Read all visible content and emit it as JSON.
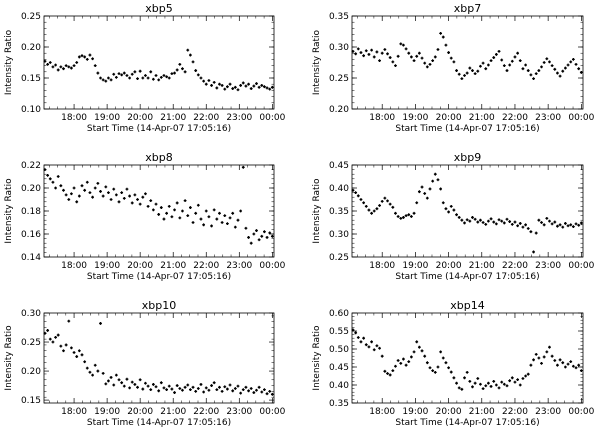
{
  "chart_data": [
    {
      "type": "scatter",
      "title": "xbp5",
      "xlabel": "Start Time (14-Apr-07 17:05:16)",
      "ylabel": "Intensity Ratio",
      "xlim": [
        17.09,
        24.05
      ],
      "ylim": [
        0.1,
        0.25
      ],
      "x_ticks": [
        "18:00",
        "19:00",
        "20:00",
        "21:00",
        "22:00",
        "23:00",
        "00:00"
      ],
      "y_ticks": [
        "0.10",
        "0.15",
        "0.20",
        "0.25"
      ],
      "x": [
        17.12,
        17.2,
        17.28,
        17.36,
        17.44,
        17.52,
        17.6,
        17.68,
        17.76,
        17.84,
        17.92,
        18.0,
        18.08,
        18.16,
        18.24,
        18.32,
        18.4,
        18.48,
        18.56,
        18.64,
        18.72,
        18.8,
        18.88,
        18.96,
        19.04,
        19.12,
        19.2,
        19.28,
        19.36,
        19.44,
        19.52,
        19.6,
        19.68,
        19.76,
        19.84,
        19.92,
        20.0,
        20.08,
        20.16,
        20.24,
        20.32,
        20.4,
        20.48,
        20.56,
        20.64,
        20.72,
        20.8,
        20.88,
        20.96,
        21.04,
        21.12,
        21.2,
        21.28,
        21.36,
        21.44,
        21.52,
        21.6,
        21.68,
        21.76,
        21.84,
        21.92,
        22.0,
        22.08,
        22.16,
        22.24,
        22.32,
        22.4,
        22.48,
        22.56,
        22.64,
        22.72,
        22.8,
        22.88,
        22.96,
        23.04,
        23.12,
        23.2,
        23.28,
        23.36,
        23.44,
        23.52,
        23.6,
        23.68,
        23.76,
        23.84,
        23.92,
        24.0
      ],
      "y": [
        0.177,
        0.172,
        0.175,
        0.168,
        0.171,
        0.163,
        0.168,
        0.165,
        0.17,
        0.168,
        0.166,
        0.17,
        0.175,
        0.184,
        0.186,
        0.184,
        0.18,
        0.187,
        0.181,
        0.17,
        0.158,
        0.15,
        0.147,
        0.145,
        0.15,
        0.147,
        0.156,
        0.151,
        0.157,
        0.155,
        0.158,
        0.154,
        0.15,
        0.156,
        0.16,
        0.149,
        0.161,
        0.15,
        0.154,
        0.15,
        0.16,
        0.148,
        0.154,
        0.147,
        0.151,
        0.154,
        0.152,
        0.15,
        0.157,
        0.158,
        0.163,
        0.172,
        0.165,
        0.16,
        0.195,
        0.187,
        0.176,
        0.162,
        0.155,
        0.15,
        0.145,
        0.14,
        0.146,
        0.138,
        0.143,
        0.134,
        0.14,
        0.138,
        0.132,
        0.136,
        0.14,
        0.133,
        0.135,
        0.131,
        0.138,
        0.142,
        0.137,
        0.14,
        0.133,
        0.137,
        0.141,
        0.135,
        0.138,
        0.136,
        0.134,
        0.132,
        0.135
      ]
    },
    {
      "type": "scatter",
      "title": "xbp7",
      "xlabel": "Start Time (14-Apr-07 17:05:16)",
      "ylabel": "Intensity Ratio",
      "xlim": [
        17.09,
        24.05
      ],
      "ylim": [
        0.2,
        0.35
      ],
      "x_ticks": [
        "18:00",
        "19:00",
        "20:00",
        "21:00",
        "22:00",
        "23:00",
        "00:00"
      ],
      "y_ticks": [
        "0.20",
        "0.25",
        "0.30",
        "0.35"
      ],
      "x": [
        17.12,
        17.2,
        17.28,
        17.36,
        17.44,
        17.52,
        17.6,
        17.68,
        17.76,
        17.84,
        17.92,
        18.0,
        18.08,
        18.16,
        18.24,
        18.32,
        18.4,
        18.48,
        18.56,
        18.64,
        18.72,
        18.8,
        18.88,
        18.96,
        19.04,
        19.12,
        19.2,
        19.28,
        19.36,
        19.44,
        19.52,
        19.6,
        19.68,
        19.76,
        19.84,
        19.92,
        20.0,
        20.08,
        20.16,
        20.24,
        20.32,
        20.4,
        20.48,
        20.56,
        20.64,
        20.72,
        20.8,
        20.88,
        20.96,
        21.04,
        21.12,
        21.2,
        21.28,
        21.36,
        21.44,
        21.52,
        21.6,
        21.68,
        21.76,
        21.84,
        21.92,
        22.0,
        22.08,
        22.16,
        22.24,
        22.32,
        22.4,
        22.48,
        22.56,
        22.64,
        22.72,
        22.8,
        22.88,
        22.96,
        23.04,
        23.12,
        23.2,
        23.28,
        23.36,
        23.44,
        23.52,
        23.6,
        23.68,
        23.76,
        23.84,
        23.92,
        24.0
      ],
      "y": [
        0.293,
        0.289,
        0.297,
        0.291,
        0.286,
        0.294,
        0.288,
        0.295,
        0.284,
        0.292,
        0.278,
        0.29,
        0.296,
        0.289,
        0.283,
        0.276,
        0.27,
        0.285,
        0.305,
        0.303,
        0.297,
        0.29,
        0.284,
        0.278,
        0.285,
        0.29,
        0.282,
        0.274,
        0.268,
        0.272,
        0.278,
        0.284,
        0.296,
        0.322,
        0.316,
        0.303,
        0.291,
        0.282,
        0.276,
        0.262,
        0.256,
        0.249,
        0.254,
        0.258,
        0.266,
        0.262,
        0.257,
        0.261,
        0.269,
        0.274,
        0.265,
        0.271,
        0.278,
        0.283,
        0.288,
        0.293,
        0.279,
        0.27,
        0.262,
        0.271,
        0.277,
        0.284,
        0.29,
        0.278,
        0.265,
        0.271,
        0.262,
        0.255,
        0.249,
        0.257,
        0.262,
        0.268,
        0.275,
        0.281,
        0.276,
        0.27,
        0.264,
        0.258,
        0.253,
        0.261,
        0.266,
        0.271,
        0.276,
        0.28,
        0.272,
        0.265,
        0.259
      ]
    },
    {
      "type": "scatter",
      "title": "xbp8",
      "xlabel": "Start Time (14-Apr-07 17:05:16)",
      "ylabel": "Intensity Ratio",
      "xlim": [
        17.09,
        24.05
      ],
      "ylim": [
        0.14,
        0.22
      ],
      "x_ticks": [
        "18:00",
        "19:00",
        "20:00",
        "21:00",
        "22:00",
        "23:00",
        "00:00"
      ],
      "y_ticks": [
        "0.14",
        "0.16",
        "0.18",
        "0.20",
        "0.22"
      ],
      "x": [
        17.12,
        17.2,
        17.28,
        17.36,
        17.44,
        17.52,
        17.6,
        17.68,
        17.76,
        17.84,
        17.92,
        18.0,
        18.08,
        18.16,
        18.24,
        18.32,
        18.4,
        18.48,
        18.56,
        18.64,
        18.72,
        18.8,
        18.88,
        18.96,
        19.04,
        19.12,
        19.2,
        19.28,
        19.36,
        19.44,
        19.52,
        19.6,
        19.68,
        19.76,
        19.84,
        19.92,
        20.0,
        20.08,
        20.16,
        20.24,
        20.32,
        20.4,
        20.48,
        20.56,
        20.64,
        20.72,
        20.8,
        20.88,
        20.96,
        21.04,
        21.12,
        21.2,
        21.28,
        21.36,
        21.44,
        21.52,
        21.6,
        21.68,
        21.76,
        21.84,
        21.92,
        22.0,
        22.08,
        22.16,
        22.24,
        22.32,
        22.4,
        22.48,
        22.56,
        22.64,
        22.72,
        22.8,
        22.88,
        22.96,
        23.04,
        23.12,
        23.2,
        23.28,
        23.36,
        23.44,
        23.52,
        23.6,
        23.68,
        23.76,
        23.84,
        23.92,
        24.0
      ],
      "y": [
        0.216,
        0.211,
        0.208,
        0.205,
        0.2,
        0.21,
        0.202,
        0.198,
        0.194,
        0.19,
        0.195,
        0.2,
        0.188,
        0.193,
        0.202,
        0.198,
        0.205,
        0.196,
        0.192,
        0.2,
        0.204,
        0.197,
        0.193,
        0.201,
        0.196,
        0.19,
        0.199,
        0.194,
        0.188,
        0.196,
        0.191,
        0.199,
        0.193,
        0.187,
        0.194,
        0.19,
        0.186,
        0.192,
        0.195,
        0.184,
        0.189,
        0.181,
        0.186,
        0.177,
        0.183,
        0.173,
        0.178,
        0.184,
        0.175,
        0.181,
        0.187,
        0.174,
        0.18,
        0.189,
        0.176,
        0.183,
        0.17,
        0.178,
        0.185,
        0.173,
        0.168,
        0.18,
        0.175,
        0.167,
        0.181,
        0.173,
        0.178,
        0.17,
        0.176,
        0.169,
        0.174,
        0.178,
        0.166,
        0.172,
        0.18,
        0.218,
        0.165,
        0.157,
        0.152,
        0.16,
        0.163,
        0.155,
        0.158,
        0.162,
        0.157,
        0.161,
        0.158
      ]
    },
    {
      "type": "scatter",
      "title": "xbp9",
      "xlabel": "Start Time (14-Apr-07 17:05:16)",
      "ylabel": "Intensity Ratio",
      "xlim": [
        17.09,
        24.05
      ],
      "ylim": [
        0.25,
        0.45
      ],
      "x_ticks": [
        "18:00",
        "19:00",
        "20:00",
        "21:00",
        "22:00",
        "23:00",
        "00:00"
      ],
      "y_ticks": [
        "0.25",
        "0.30",
        "0.35",
        "0.40",
        "0.45"
      ],
      "x": [
        17.12,
        17.2,
        17.28,
        17.36,
        17.44,
        17.52,
        17.6,
        17.68,
        17.76,
        17.84,
        17.92,
        18.0,
        18.08,
        18.16,
        18.24,
        18.32,
        18.4,
        18.48,
        18.56,
        18.64,
        18.72,
        18.8,
        18.88,
        18.96,
        19.04,
        19.12,
        19.2,
        19.28,
        19.36,
        19.44,
        19.52,
        19.6,
        19.68,
        19.76,
        19.84,
        19.92,
        20.0,
        20.08,
        20.16,
        20.24,
        20.32,
        20.4,
        20.48,
        20.56,
        20.64,
        20.72,
        20.8,
        20.88,
        20.96,
        21.04,
        21.12,
        21.2,
        21.28,
        21.36,
        21.44,
        21.52,
        21.6,
        21.68,
        21.76,
        21.84,
        21.92,
        22.0,
        22.08,
        22.16,
        22.24,
        22.32,
        22.4,
        22.48,
        22.56,
        22.64,
        22.72,
        22.8,
        22.88,
        22.96,
        23.04,
        23.12,
        23.2,
        23.28,
        23.36,
        23.44,
        23.52,
        23.6,
        23.68,
        23.76,
        23.84,
        23.92,
        24.0
      ],
      "y": [
        0.395,
        0.39,
        0.383,
        0.375,
        0.368,
        0.36,
        0.352,
        0.345,
        0.35,
        0.355,
        0.362,
        0.371,
        0.378,
        0.372,
        0.365,
        0.358,
        0.345,
        0.338,
        0.334,
        0.336,
        0.34,
        0.342,
        0.338,
        0.345,
        0.368,
        0.392,
        0.402,
        0.388,
        0.378,
        0.398,
        0.415,
        0.43,
        0.418,
        0.398,
        0.368,
        0.355,
        0.348,
        0.36,
        0.352,
        0.342,
        0.336,
        0.33,
        0.324,
        0.331,
        0.328,
        0.336,
        0.332,
        0.326,
        0.33,
        0.325,
        0.321,
        0.328,
        0.333,
        0.326,
        0.322,
        0.331,
        0.328,
        0.324,
        0.332,
        0.327,
        0.321,
        0.326,
        0.318,
        0.323,
        0.315,
        0.32,
        0.312,
        0.305,
        0.261,
        0.302,
        0.33,
        0.325,
        0.32,
        0.334,
        0.328,
        0.322,
        0.326,
        0.317,
        0.32,
        0.315,
        0.323,
        0.318,
        0.32,
        0.316,
        0.322,
        0.319,
        0.324
      ]
    },
    {
      "type": "scatter",
      "title": "xbp10",
      "xlabel": "Start Time (14-Apr-07 17:05:16)",
      "ylabel": "Intensity Ratio",
      "xlim": [
        17.09,
        24.05
      ],
      "ylim": [
        0.145,
        0.3
      ],
      "x_ticks": [
        "18:00",
        "19:00",
        "20:00",
        "21:00",
        "22:00",
        "23:00",
        "00:00"
      ],
      "y_ticks": [
        "0.15",
        "0.20",
        "0.25",
        "0.30"
      ],
      "x": [
        17.12,
        17.2,
        17.28,
        17.36,
        17.44,
        17.52,
        17.6,
        17.68,
        17.76,
        17.84,
        17.92,
        18.0,
        18.08,
        18.16,
        18.24,
        18.32,
        18.4,
        18.48,
        18.56,
        18.64,
        18.72,
        18.8,
        18.88,
        18.96,
        19.04,
        19.12,
        19.2,
        19.28,
        19.36,
        19.44,
        19.52,
        19.6,
        19.68,
        19.76,
        19.84,
        19.92,
        20.0,
        20.08,
        20.16,
        20.24,
        20.32,
        20.4,
        20.48,
        20.56,
        20.64,
        20.72,
        20.8,
        20.88,
        20.96,
        21.04,
        21.12,
        21.2,
        21.28,
        21.36,
        21.44,
        21.52,
        21.6,
        21.68,
        21.76,
        21.84,
        21.92,
        22.0,
        22.08,
        22.16,
        22.24,
        22.32,
        22.4,
        22.48,
        22.56,
        22.64,
        22.72,
        22.8,
        22.88,
        22.96,
        23.04,
        23.12,
        23.2,
        23.28,
        23.36,
        23.44,
        23.52,
        23.6,
        23.68,
        23.76,
        23.84,
        23.92,
        24.0
      ],
      "y": [
        0.265,
        0.27,
        0.255,
        0.25,
        0.258,
        0.262,
        0.243,
        0.235,
        0.245,
        0.286,
        0.24,
        0.232,
        0.225,
        0.235,
        0.228,
        0.216,
        0.205,
        0.198,
        0.193,
        0.21,
        0.2,
        0.282,
        0.196,
        0.178,
        0.183,
        0.189,
        0.176,
        0.193,
        0.185,
        0.18,
        0.174,
        0.186,
        0.171,
        0.181,
        0.177,
        0.172,
        0.185,
        0.169,
        0.179,
        0.174,
        0.168,
        0.177,
        0.173,
        0.166,
        0.18,
        0.171,
        0.168,
        0.174,
        0.169,
        0.163,
        0.175,
        0.17,
        0.167,
        0.172,
        0.176,
        0.168,
        0.172,
        0.165,
        0.17,
        0.177,
        0.164,
        0.171,
        0.167,
        0.175,
        0.18,
        0.168,
        0.172,
        0.165,
        0.173,
        0.169,
        0.176,
        0.166,
        0.17,
        0.174,
        0.162,
        0.168,
        0.172,
        0.166,
        0.17,
        0.163,
        0.167,
        0.172,
        0.164,
        0.168,
        0.161,
        0.165,
        0.16
      ]
    },
    {
      "type": "scatter",
      "title": "xbp14",
      "xlabel": "Start Time (14-Apr-07 17:05:16)",
      "ylabel": "Intensity Ratio",
      "xlim": [
        17.09,
        24.05
      ],
      "ylim": [
        0.35,
        0.6
      ],
      "x_ticks": [
        "18:00",
        "19:00",
        "20:00",
        "21:00",
        "22:00",
        "23:00",
        "00:00"
      ],
      "y_ticks": [
        "0.35",
        "0.40",
        "0.45",
        "0.50",
        "0.55",
        "0.60"
      ],
      "x": [
        17.12,
        17.2,
        17.28,
        17.36,
        17.44,
        17.52,
        17.6,
        17.68,
        17.76,
        17.84,
        17.92,
        18.0,
        18.08,
        18.16,
        18.24,
        18.32,
        18.4,
        18.48,
        18.56,
        18.64,
        18.72,
        18.8,
        18.88,
        18.96,
        19.04,
        19.12,
        19.2,
        19.28,
        19.36,
        19.44,
        19.52,
        19.6,
        19.68,
        19.76,
        19.84,
        19.92,
        20.0,
        20.08,
        20.16,
        20.24,
        20.32,
        20.4,
        20.48,
        20.56,
        20.64,
        20.72,
        20.8,
        20.88,
        20.96,
        21.04,
        21.12,
        21.2,
        21.28,
        21.36,
        21.44,
        21.52,
        21.6,
        21.68,
        21.76,
        21.84,
        21.92,
        22.0,
        22.08,
        22.16,
        22.24,
        22.32,
        22.4,
        22.48,
        22.56,
        22.64,
        22.72,
        22.8,
        22.88,
        22.96,
        23.04,
        23.12,
        23.2,
        23.28,
        23.36,
        23.44,
        23.52,
        23.6,
        23.68,
        23.76,
        23.84,
        23.92,
        24.0
      ],
      "y": [
        0.553,
        0.545,
        0.532,
        0.52,
        0.53,
        0.512,
        0.506,
        0.52,
        0.498,
        0.509,
        0.502,
        0.48,
        0.438,
        0.432,
        0.428,
        0.44,
        0.452,
        0.468,
        0.46,
        0.472,
        0.455,
        0.465,
        0.478,
        0.492,
        0.52,
        0.505,
        0.495,
        0.48,
        0.462,
        0.448,
        0.44,
        0.435,
        0.45,
        0.492,
        0.475,
        0.462,
        0.448,
        0.436,
        0.42,
        0.405,
        0.392,
        0.388,
        0.42,
        0.435,
        0.41,
        0.395,
        0.405,
        0.418,
        0.402,
        0.39,
        0.398,
        0.405,
        0.396,
        0.41,
        0.4,
        0.392,
        0.408,
        0.402,
        0.398,
        0.412,
        0.42,
        0.408,
        0.415,
        0.4,
        0.418,
        0.425,
        0.43,
        0.455,
        0.47,
        0.485,
        0.475,
        0.46,
        0.478,
        0.492,
        0.505,
        0.48,
        0.468,
        0.455,
        0.47,
        0.462,
        0.45,
        0.458,
        0.465,
        0.452,
        0.448,
        0.455,
        0.44
      ]
    }
  ]
}
